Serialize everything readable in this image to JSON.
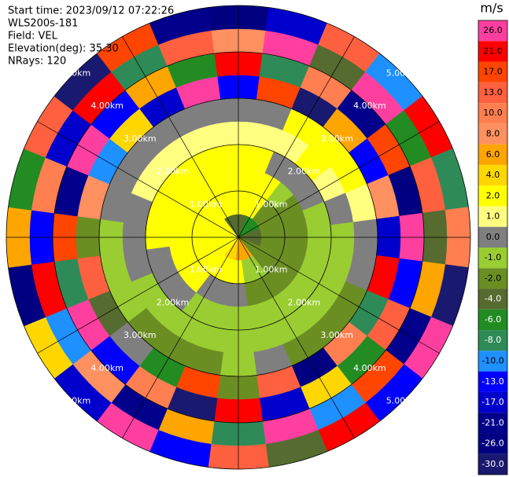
{
  "chart_data": {
    "type": "ppi",
    "info": [
      "Start time: 2023/09/12 07:22:26",
      "WLS200s-181",
      "Field: VEL",
      "Elevation(deg): 35.30",
      "NRays: 120"
    ],
    "azimuths": [
      0,
      15,
      30,
      45,
      60,
      75,
      90,
      105,
      120,
      135,
      150,
      165,
      180,
      195,
      210,
      225,
      240,
      255,
      270,
      285,
      300,
      315,
      330,
      345
    ],
    "ranges": [
      0.25,
      0.75,
      1.25,
      1.75,
      2.25,
      2.75,
      3.25,
      3.75,
      4.25,
      4.75
    ],
    "rlim": [
      0,
      5
    ],
    "rings": [
      {
        "value": 1,
        "label": "1.00km"
      },
      {
        "value": 2,
        "label": "2.00km"
      },
      {
        "value": 3,
        "label": "3.00km"
      },
      {
        "value": 4,
        "label": "4.00km"
      },
      {
        "value": 5,
        "label": "5.00km"
      }
    ],
    "values": [
      [
        -4,
        2,
        2,
        2,
        1,
        0,
        -13,
        21,
        8,
        -26
      ],
      [
        -4,
        2,
        2,
        2,
        1,
        0,
        17,
        -8,
        26,
        -17
      ],
      [
        -6,
        2,
        2,
        0,
        1,
        2,
        -30,
        10,
        -4,
        13
      ],
      [
        -6,
        -2,
        -1,
        0,
        2,
        2,
        6,
        -21,
        26,
        -10
      ],
      [
        -6,
        -2,
        -2,
        0,
        1,
        2,
        -13,
        17,
        -6,
        21
      ],
      [
        -4,
        -2,
        -2,
        -1,
        0,
        1,
        8,
        -26,
        13,
        -8
      ],
      [
        -4,
        -2,
        -2,
        -1,
        -1,
        0,
        -17,
        26,
        -4,
        10
      ],
      [
        -4,
        -2,
        -2,
        -1,
        -1,
        0,
        21,
        -13,
        6,
        -30
      ],
      [
        -2,
        -2,
        -2,
        -1,
        -1,
        -2,
        -8,
        13,
        -21,
        26
      ],
      [
        -2,
        -2,
        -2,
        -1,
        -1,
        -2,
        10,
        -6,
        17,
        -13
      ],
      [
        6,
        -1,
        -2,
        -1,
        -1,
        -2,
        -26,
        4,
        -10,
        21
      ],
      [
        6,
        -1,
        -2,
        -1,
        -1,
        0,
        13,
        -17,
        26,
        -4
      ],
      [
        6,
        2,
        0,
        -1,
        -1,
        -1,
        -2,
        21,
        -8,
        13
      ],
      [
        4,
        2,
        0,
        -1,
        -1,
        -2,
        17,
        -30,
        6,
        -13
      ],
      [
        4,
        2,
        0,
        -1,
        -1,
        -2,
        -6,
        10,
        -21,
        26
      ],
      [
        2,
        2,
        2,
        0,
        -1,
        -2,
        0,
        -13,
        8,
        -17
      ],
      [
        2,
        2,
        2,
        0,
        -1,
        -1,
        -4,
        26,
        -10,
        4
      ],
      [
        2,
        2,
        2,
        0,
        0,
        -1,
        13,
        -8,
        21,
        -26
      ],
      [
        2,
        2,
        2,
        2,
        0,
        -1,
        -2,
        17,
        -13,
        6
      ],
      [
        2,
        2,
        2,
        2,
        0,
        0,
        8,
        -21,
        10,
        -6
      ],
      [
        2,
        2,
        2,
        2,
        1,
        0,
        -10,
        26,
        -17,
        13
      ],
      [
        2,
        2,
        2,
        2,
        1,
        0,
        4,
        -13,
        21,
        -30
      ],
      [
        -4,
        2,
        2,
        2,
        1,
        0,
        -17,
        6,
        -8,
        17
      ],
      [
        -4,
        2,
        2,
        2,
        1,
        0,
        26,
        -6,
        13,
        -21
      ]
    ],
    "colorbar": {
      "title": "m/s",
      "levels": [
        {
          "value": 26,
          "label": "26.0"
        },
        {
          "value": 21,
          "label": "21.0"
        },
        {
          "value": 17,
          "label": "17.0"
        },
        {
          "value": 13,
          "label": "13.0"
        },
        {
          "value": 10,
          "label": "10.0"
        },
        {
          "value": 8,
          "label": "8.0"
        },
        {
          "value": 6,
          "label": "6.0"
        },
        {
          "value": 4,
          "label": "4.0"
        },
        {
          "value": 2,
          "label": "2.0"
        },
        {
          "value": 1,
          "label": "1.0"
        },
        {
          "value": 0,
          "label": "0.0"
        },
        {
          "value": -1,
          "label": "-1.0"
        },
        {
          "value": -2,
          "label": "-2.0"
        },
        {
          "value": -4,
          "label": "-4.0"
        },
        {
          "value": -6,
          "label": "-6.0"
        },
        {
          "value": -8,
          "label": "-8.0"
        },
        {
          "value": -10,
          "label": "-10.0"
        },
        {
          "value": -13,
          "label": "-13.0"
        },
        {
          "value": -17,
          "label": "-17.0"
        },
        {
          "value": -21,
          "label": "-21.0"
        },
        {
          "value": -26,
          "label": "-26.0"
        },
        {
          "value": -30,
          "label": "-30.0"
        }
      ],
      "colors": [
        "#ff3fa0",
        "#ff0000",
        "#ff4500",
        "#ff6040",
        "#ff7f50",
        "#ff9060",
        "#ffa500",
        "#ffd700",
        "#ffff00",
        "#ffff80",
        "#7f7f7f",
        "#9acd32",
        "#6b8e23",
        "#556b2f",
        "#228b22",
        "#2e8b57",
        "#1e90ff",
        "#0000ff",
        "#0000cd",
        "#00008b",
        "#000080",
        "#191970"
      ]
    }
  }
}
